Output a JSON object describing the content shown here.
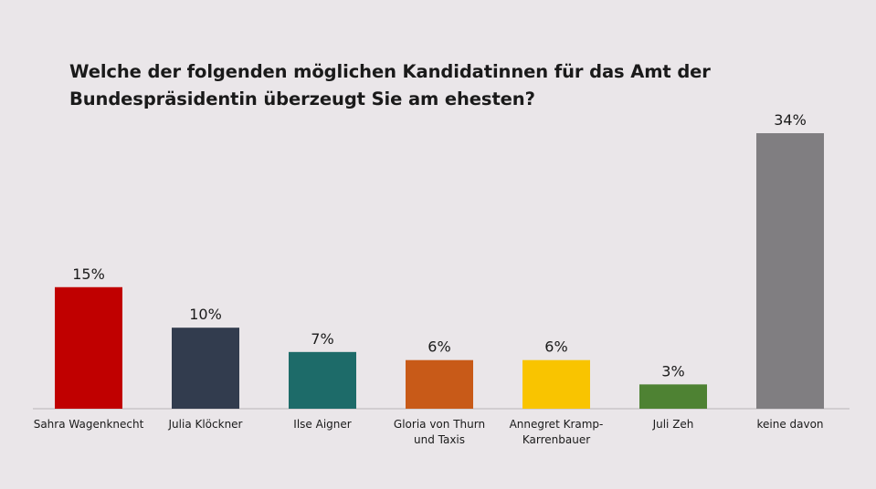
{
  "chart_data": {
    "type": "bar",
    "title": "Welche der folgenden möglichen Kandidatinnen für das Amt der Bundespräsidentin überzeugt Sie am ehesten?",
    "title_lines": [
      "Welche der folgenden möglichen Kandidatinnen für das Amt der",
      "Bundespräsidentin überzeugt Sie am ehesten?"
    ],
    "categories": [
      "Sahra Wagenknecht",
      "Julia Klöckner",
      "Ilse Aigner",
      "Gloria von Thurn und Taxis",
      "Annegret Kramp-Karrenbauer",
      "Juli Zeh",
      "keine davon"
    ],
    "category_label_lines": [
      [
        "Sahra Wagenknecht"
      ],
      [
        "Julia Klöckner"
      ],
      [
        "Ilse Aigner"
      ],
      [
        "Gloria von Thurn",
        "und Taxis"
      ],
      [
        "Annegret Kramp-",
        "Karrenbauer"
      ],
      [
        "Juli Zeh"
      ],
      [
        "keine davon"
      ]
    ],
    "values": [
      15,
      10,
      7,
      6,
      6,
      3,
      34
    ],
    "value_labels": [
      "15%",
      "10%",
      "7%",
      "6%",
      "6%",
      "3%",
      "34%"
    ],
    "colors": [
      "#c00000",
      "#323c4e",
      "#1d6b69",
      "#c85a18",
      "#f9c400",
      "#4e8233",
      "#807e81"
    ],
    "background": "#eae6e9",
    "baseline_color": "#b8b4b7",
    "ylim": [
      0,
      34
    ],
    "xlabel": "",
    "ylabel": "",
    "grid": false,
    "legend": "none"
  }
}
